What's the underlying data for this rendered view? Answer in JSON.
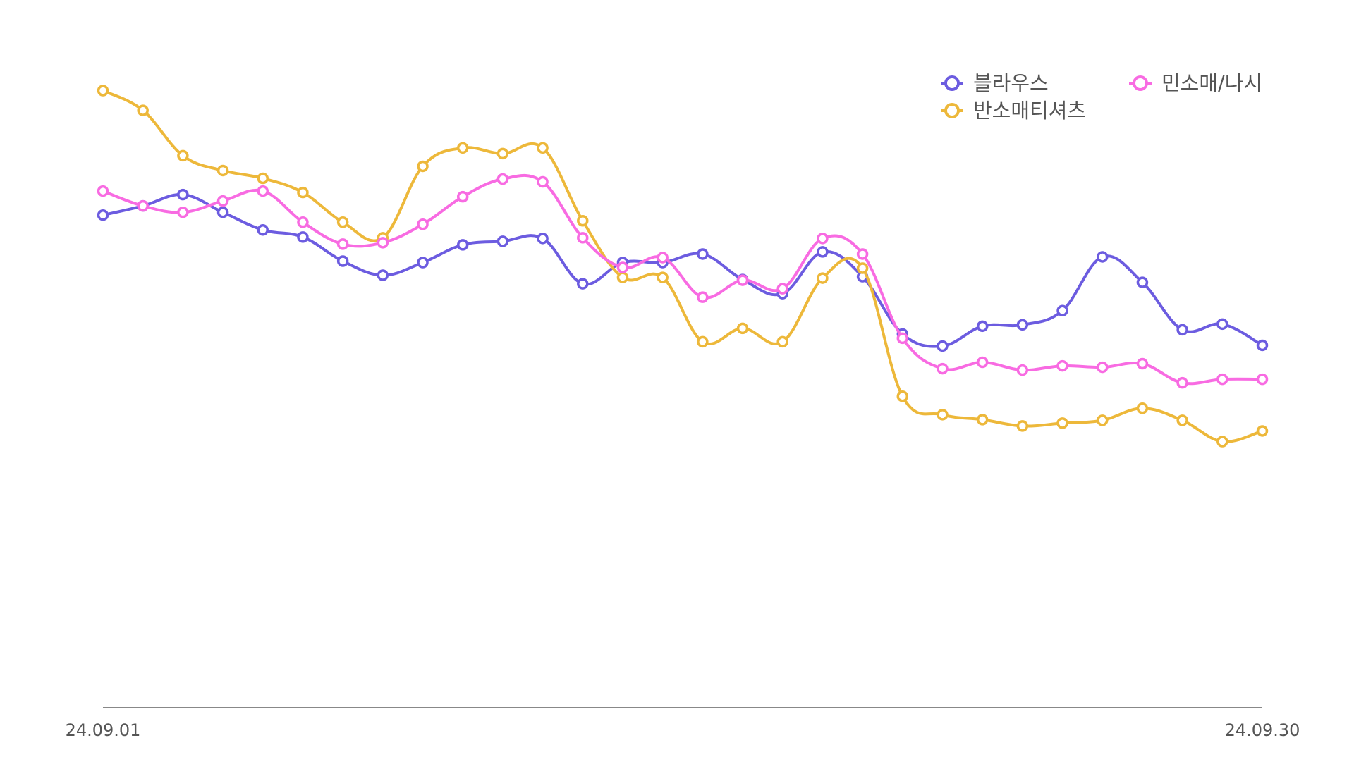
{
  "chart_data": {
    "type": "line",
    "x": [
      "24.09.01",
      "24.09.02",
      "24.09.03",
      "24.09.04",
      "24.09.05",
      "24.09.06",
      "24.09.07",
      "24.09.08",
      "24.09.09",
      "24.09.10",
      "24.09.11",
      "24.09.12",
      "24.09.13",
      "24.09.14",
      "24.09.15",
      "24.09.16",
      "24.09.17",
      "24.09.18",
      "24.09.19",
      "24.09.20",
      "24.09.21",
      "24.09.22",
      "24.09.23",
      "24.09.24",
      "24.09.25",
      "24.09.26",
      "24.09.27",
      "24.09.28",
      "24.09.29",
      "24.09.30"
    ],
    "x_tick_labels": [
      "24.09.01",
      "24.09.30"
    ],
    "ylim": [
      0,
      100
    ],
    "grid": false,
    "legend_position": "top-right",
    "series": [
      {
        "name": "블라우스",
        "color": "#6C5CE0",
        "values": [
          69.6,
          70.9,
          72.5,
          70.0,
          67.5,
          66.5,
          63.1,
          61.1,
          62.9,
          65.4,
          65.9,
          66.3,
          59.9,
          62.9,
          62.9,
          64.1,
          60.5,
          58.5,
          64.4,
          60.9,
          52.8,
          51.1,
          53.9,
          54.1,
          56.1,
          63.7,
          60.1,
          53.4,
          54.2,
          51.2
        ]
      },
      {
        "name": "반소매티셔츠",
        "color": "#EDB83A",
        "values": [
          87.2,
          84.4,
          78.0,
          75.9,
          74.8,
          72.8,
          68.6,
          66.4,
          76.5,
          79.1,
          78.3,
          79.1,
          68.8,
          60.8,
          60.8,
          51.7,
          53.6,
          51.7,
          60.7,
          62.1,
          44.0,
          41.4,
          40.7,
          39.8,
          40.2,
          40.6,
          42.3,
          40.6,
          37.6,
          39.1
        ]
      },
      {
        "name": "민소매/나시",
        "color": "#F86BE2",
        "values": [
          73.0,
          70.9,
          70.0,
          71.6,
          73.0,
          68.6,
          65.5,
          65.7,
          68.3,
          72.2,
          74.7,
          74.3,
          66.4,
          62.2,
          63.6,
          58.0,
          60.4,
          59.2,
          66.3,
          64.1,
          52.2,
          47.9,
          48.8,
          47.7,
          48.3,
          48.1,
          48.6,
          45.9,
          46.4,
          46.4
        ]
      }
    ]
  }
}
